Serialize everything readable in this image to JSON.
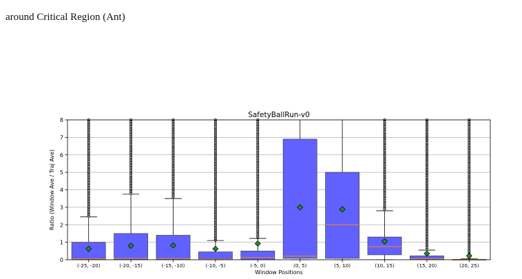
{
  "caption": {
    "tail": "around Critical Region (Ant)"
  },
  "chart_data": {
    "type": "box",
    "title": "SafetyBallRun-v0",
    "xlabel": "Window Positions",
    "ylabel": "Ratio (Window Ave / Traj Ave)",
    "ylim": [
      0,
      8
    ],
    "yticks": [
      0,
      1,
      2,
      3,
      4,
      5,
      6,
      7,
      8
    ],
    "grid": "horizontal",
    "colors": {
      "box": "#6161ff",
      "median": "#ff8c00",
      "mean": "#228b22",
      "outlier": "#000000"
    },
    "categories": [
      "(-25, -20)",
      "(-20, -15)",
      "(-15, -10)",
      "(-10, -5)",
      "(-5, 0)",
      "(0, 5)",
      "(5, 10)",
      "(10, 15)",
      "(15, 20)",
      "(20, 25)"
    ],
    "boxes": [
      {
        "q1": 0.0,
        "median": 0.05,
        "q3": 1.0,
        "whisker_low": 0.0,
        "whisker_high": 2.45,
        "mean": 0.62,
        "outliers_from": 2.5,
        "outliers_to": 8.0
      },
      {
        "q1": 0.0,
        "median": 0.08,
        "q3": 1.5,
        "whisker_low": 0.0,
        "whisker_high": 3.75,
        "mean": 0.8,
        "outliers_from": 3.8,
        "outliers_to": 8.0
      },
      {
        "q1": 0.0,
        "median": 0.07,
        "q3": 1.4,
        "whisker_low": 0.0,
        "whisker_high": 3.5,
        "mean": 0.82,
        "outliers_from": 3.55,
        "outliers_to": 8.0
      },
      {
        "q1": 0.0,
        "median": 0.03,
        "q3": 0.45,
        "whisker_low": 0.0,
        "whisker_high": 1.1,
        "mean": 0.62,
        "outliers_from": 1.12,
        "outliers_to": 8.0
      },
      {
        "q1": 0.0,
        "median": 0.12,
        "q3": 0.5,
        "whisker_low": 0.0,
        "whisker_high": 1.22,
        "mean": 0.92,
        "outliers_from": 1.25,
        "outliers_to": 8.0
      },
      {
        "q1": 0.08,
        "median": 0.2,
        "q3": 6.9,
        "whisker_low": 0.0,
        "whisker_high": 8.0,
        "mean": 3.0,
        "outliers_from": null,
        "outliers_to": null
      },
      {
        "q1": 0.08,
        "median": 2.0,
        "q3": 5.0,
        "whisker_low": 0.0,
        "whisker_high": 8.0,
        "mean": 2.88,
        "outliers_from": null,
        "outliers_to": null
      },
      {
        "q1": 0.28,
        "median": 0.75,
        "q3": 1.3,
        "whisker_low": 0.0,
        "whisker_high": 2.8,
        "mean": 1.05,
        "outliers_from": 2.85,
        "outliers_to": 8.0
      },
      {
        "q1": 0.0,
        "median": 0.05,
        "q3": 0.22,
        "whisker_low": 0.0,
        "whisker_high": 0.55,
        "mean": 0.35,
        "outliers_from": 0.6,
        "outliers_to": 8.0
      },
      {
        "q1": 0.0,
        "median": 0.01,
        "q3": 0.02,
        "whisker_low": 0.0,
        "whisker_high": 0.05,
        "mean": 0.22,
        "outliers_from": 0.08,
        "outliers_to": 8.0
      }
    ]
  }
}
